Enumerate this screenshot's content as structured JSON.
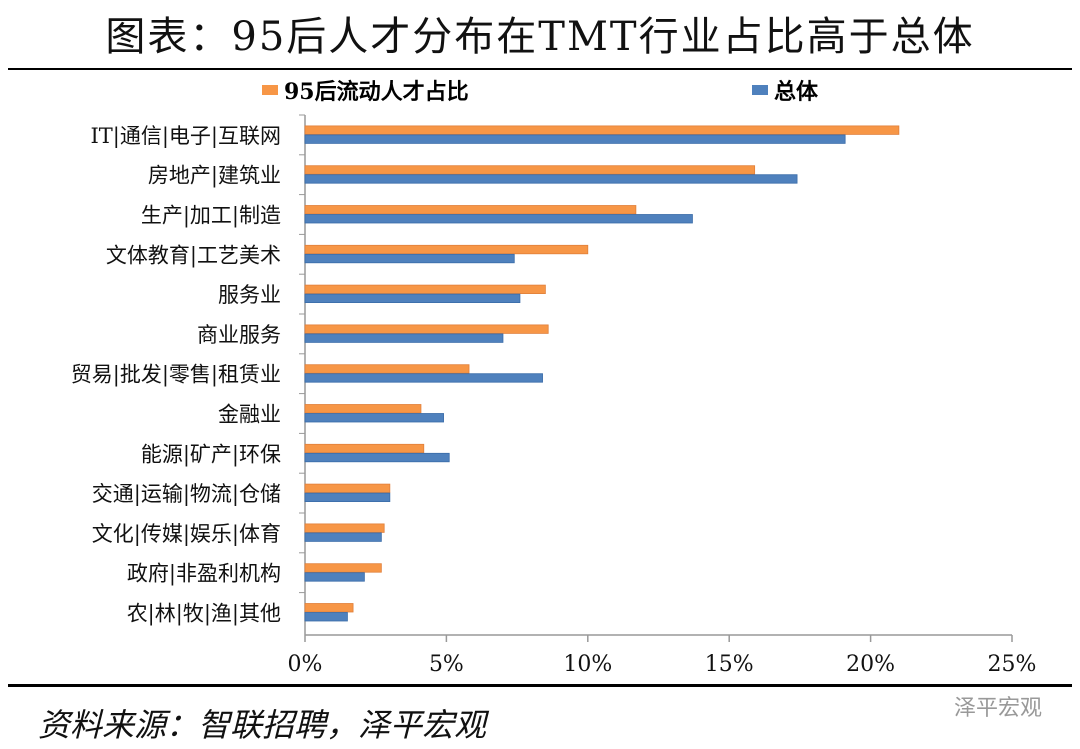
{
  "chart_data": {
    "type": "bar",
    "orientation": "horizontal",
    "title": "图表：95后人才分布在TMT行业占比高于总体",
    "categories": [
      "IT|通信|电子|互联网",
      "房地产|建筑业",
      "生产|加工|制造",
      "文体教育|工艺美术",
      "服务业",
      "商业服务",
      "贸易|批发|零售|租赁业",
      "金融业",
      "能源|矿产|环保",
      "交通|运输|物流|仓储",
      "文化|传媒|娱乐|体育",
      "政府|非盈利机构",
      "农|林|牧|渔|其他"
    ],
    "series": [
      {
        "name": "95后流动人才占比",
        "color": "#F79646",
        "values": [
          21.0,
          15.9,
          11.7,
          10.0,
          8.5,
          8.6,
          5.8,
          4.1,
          4.2,
          3.0,
          2.8,
          2.7,
          1.7
        ]
      },
      {
        "name": "总体",
        "color": "#4F81BD",
        "values": [
          19.1,
          17.4,
          13.7,
          7.4,
          7.6,
          7.0,
          8.4,
          4.9,
          5.1,
          3.0,
          2.7,
          2.1,
          1.5
        ]
      }
    ],
    "xlim": [
      0,
      25
    ],
    "xticks": [
      "0%",
      "5%",
      "10%",
      "15%",
      "20%",
      "25%"
    ],
    "grid": false,
    "legend_position": "top"
  },
  "source": "资料来源：智联招聘，泽平宏观",
  "watermark": "泽平宏观"
}
